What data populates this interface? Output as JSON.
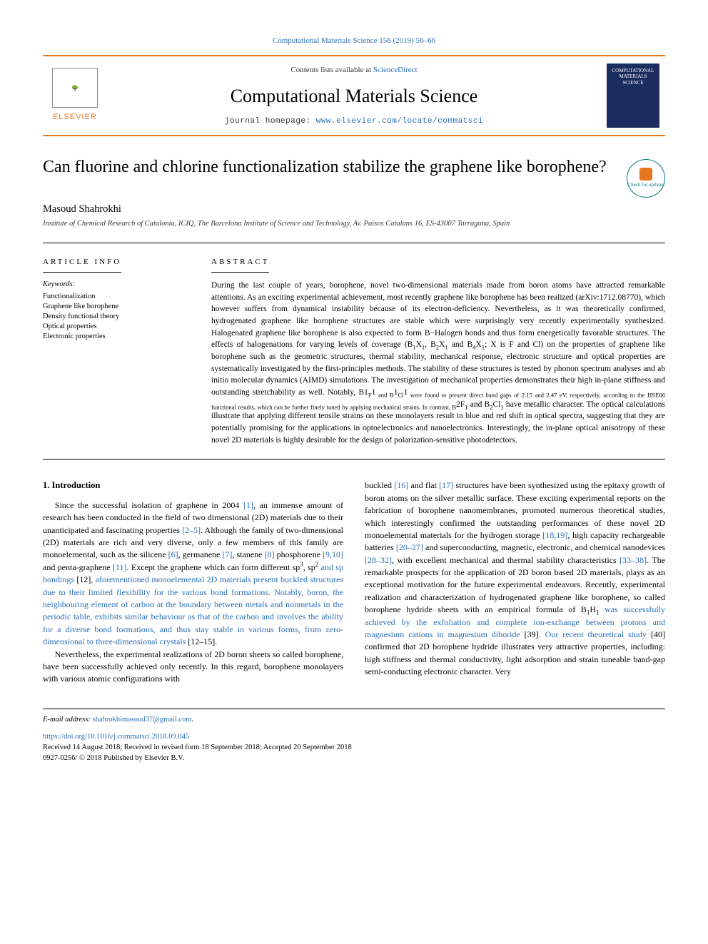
{
  "top_link": "Computational Materials Science 156 (2019) 56–66",
  "header": {
    "publisher_name": "ELSEVIER",
    "contents_prefix": "Contents lists available at ",
    "contents_link": "ScienceDirect",
    "journal_name": "Computational Materials Science",
    "homepage_prefix": "journal homepage: ",
    "homepage_link": "www.elsevier.com/locate/commatsci",
    "cover_text": "COMPUTATIONAL MATERIALS SCIENCE"
  },
  "title": "Can fluorine and chlorine functionalization stabilize the graphene like borophene?",
  "updates_badge": "Check for updates",
  "author": "Masoud Shahrokhi",
  "affiliation": "Institute of Chemical Research of Catalonia, ICIQ, The Barcelona Institute of Science and Technology, Av. Països Catalans 16, ES-43007 Tarragona, Spain",
  "info": {
    "head": "ARTICLE INFO",
    "keywords_label": "Keywords:",
    "keywords": [
      "Functionalization",
      "Graphene like borophene",
      "Density functional theory",
      "Optical properties",
      "Electronic properties"
    ]
  },
  "abstract": {
    "head": "ABSTRACT",
    "text_parts": [
      "During the last couple of years, borophene, novel two-dimensional materials made from boron atoms have attracted remarkable attentions. As an exciting experimental achievement, most recently graphene like borophene has been realized (arXiv:1712.08770), which however suffers from dynamical instability because of its electron-deficiency. Nevertheless, as it was theoretically confirmed, hydrogenated graphene like borophene structures are stable which were surprisingly very recently experimentally synthesized. Halogenated graphene like borophene is also expected to form B−Halogen bonds and thus form energetically favorable structures. The effects of halogenations for varying levels of coverage (B",
      "1",
      "X",
      "1",
      ", B",
      "2",
      "X",
      "1",
      " and B",
      "4",
      "X",
      "1",
      "; X is F and Cl) on the properties of graphene like borophene such as the geometric structures, thermal stability, mechanical response, electronic structure and optical properties are systematically investigated by the first-principles methods. The stability of these structures is tested by phonon spectrum analyses and ab initio molecular dynamics (AIMD) simulations. The investigation of mechanical properties demonstrates their high in-plane stiffness and outstanding stretchability as well. Notably, B",
      "1",
      "F",
      "1",
      " and B",
      "1",
      "Cl",
      "1",
      " were found to present direct band gaps of 2.15 and 2.47 eV, respectively, according to the HSE06 functional results, which can be further finely tuned by applying mechanical strains. In contrast, B",
      "2",
      "F",
      "1",
      " and B",
      "2",
      "Cl",
      "1",
      " have metallic character. The optical calculations illustrate that applying different tensile strains on these monolayers result in blue and red shift in optical spectra, suggesting that they are potentially promising for the applications in optoelectronics and nanoelectronics. Interestingly, the in-plane optical anisotropy of these novel 2D materials is highly desirable for the design of polarization-sensitive photodetectors."
    ]
  },
  "body": {
    "heading": "1. Introduction",
    "col1": {
      "p1_parts": [
        "Since the successful isolation of graphene in 2004 ",
        "[1]",
        ", an immense amount of research has been conducted in the field of two dimensional (2D) materials due to their unanticipated and fascinating properties ",
        "[2–5]",
        ". Although the family of two-dimensional (2D) materials are rich and very diverse, only a few members of this family are monoelemental, such as the silicene ",
        "[6]",
        ", germanene ",
        "[7]",
        ", stanene ",
        "[8]",
        " phosphorene ",
        "[9,10]",
        " and penta-graphene ",
        "[11]",
        ". Except the graphene which can form different sp",
        "3",
        ", sp",
        "2",
        " and sp bondings ",
        "[12]",
        ", aforementioned monoelemental 2D materials present buckled structures due to their limited flexibility for the various bond formations. Notably, boron, the neighbouring element of carbon at the boundary between metals and nonmetals in the periodic table, exhibits similar behaviour as that of the carbon and involves the ability for a diverse bond formations, and thus stay stable in various forms, from zero-dimensional to three-dimensional crystals ",
        "[12–15]",
        "."
      ],
      "p2": "Nevertheless, the experimental realizations of 2D boron sheets so called borophene, have been successfully achieved only recently. In this regard, borophene monolayers with various atomic configurations with"
    },
    "col2": {
      "p1_parts": [
        "buckled ",
        "[16]",
        " and flat ",
        "[17]",
        " structures have been synthesized using the epitaxy growth of boron atoms on the silver metallic surface. These exciting experimental reports on the fabrication of borophene nanomembranes, promoted numerous theoretical studies, which interestingly confirmed the outstanding performances of these novel 2D monoelemental materials for the hydrogen storage ",
        "[18,19]",
        ", high capacity rechargeable batteries ",
        "[20–27]",
        " and superconducting, magnetic, electronic, and chemical nanodevices ",
        "[28–32]",
        ", with excellent mechanical and thermal stability characteristics ",
        "[33–38]",
        ". The remarkable prospects for the application of 2D boron based 2D materials, plays as an exceptional motivation for the future experimental endeavors. Recently, experimental realization and characterization of hydrogenated graphene like borophene, so called borophene hydride sheets with an empirical formula of B",
        "1",
        "H",
        "1",
        " was successfully achieved by the exfoliation and complete ion-exchange between protons and magnesium cations in magnesium diboride ",
        "[39]",
        ". Our recent theoretical study ",
        "[40]",
        " confirmed that 2D borophene hydride illustrates very attractive properties, including: high stiffness and thermal conductivity, light adsorption and strain tuneable band-gap semi-conducting electronic character. Very"
      ]
    }
  },
  "footer": {
    "email_label": "E-mail address: ",
    "email": "shahrokhimasoud37@gmail.com",
    "doi": "https://doi.org/10.1016/j.commatsci.2018.09.045",
    "received": "Received 14 August 2018; Received in revised form 18 September 2018; Accepted 20 September 2018",
    "copyright": "0927-0256/ © 2018 Published by Elsevier B.V."
  },
  "colors": {
    "accent": "#e87722",
    "link": "#2a6eb5",
    "cover_bg": "#1b2d5e",
    "badge": "#0a7a7a"
  }
}
